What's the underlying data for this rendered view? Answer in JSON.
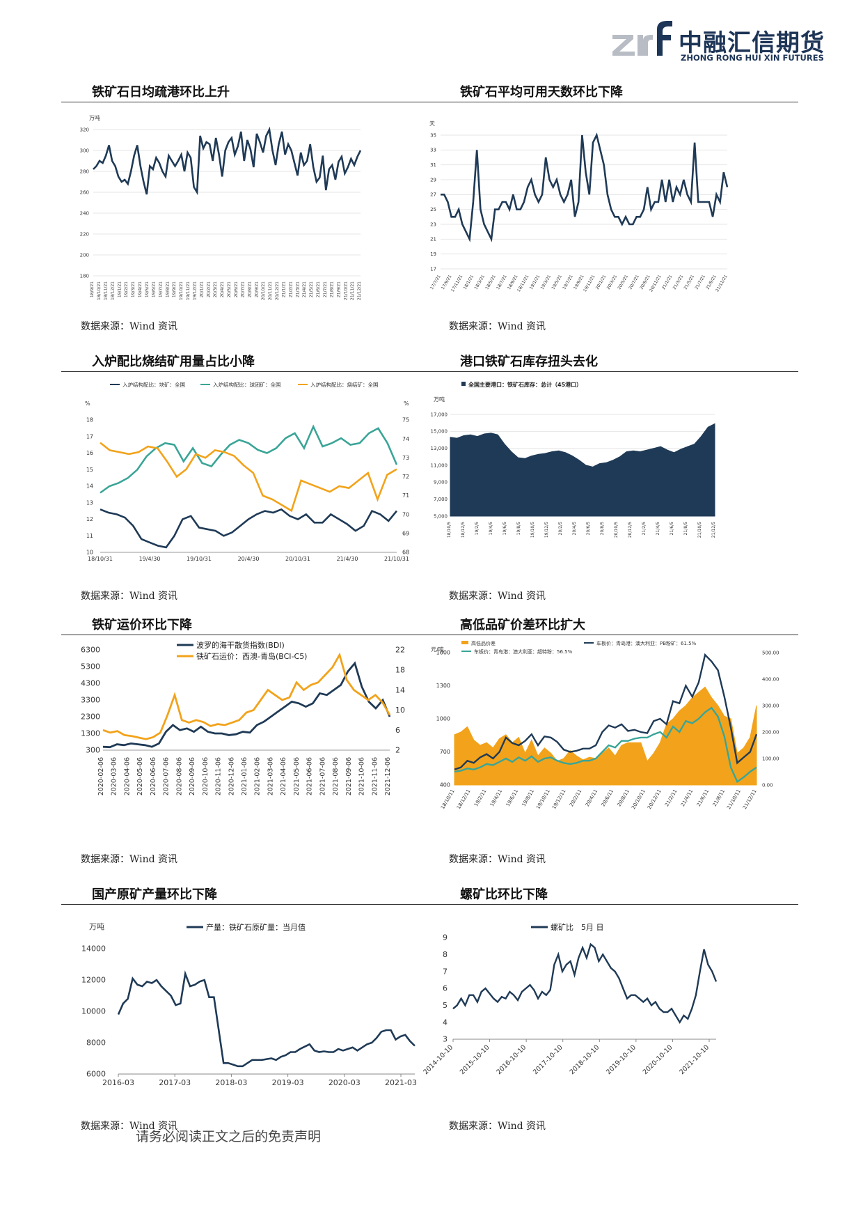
{
  "header": {
    "logo_cn": "中融汇信期货",
    "logo_en": "ZHONG RONG HUI XIN FUTURES"
  },
  "footer": {
    "disclaimer": "请务必阅读正文之后的免责声明"
  },
  "colors": {
    "navy": "#1f3a56",
    "orange": "#f2a31b",
    "teal": "#3aa597",
    "area": "#1f3a56"
  },
  "panels": [
    {
      "title": "铁矿石日均疏港环比上升",
      "source": "数据来源：Wind 资讯"
    },
    {
      "title": "铁矿石平均可用天数环比下降",
      "source": "数据来源：Wind 资讯"
    },
    {
      "title": "入炉配比烧结矿用量占比小降",
      "source": "数据来源：Wind 资讯"
    },
    {
      "title": "港口铁矿石库存扭头去化",
      "source": "数据来源：Wind 资讯"
    },
    {
      "title": "铁矿运价环比下降",
      "source": "数据来源：Wind 资讯"
    },
    {
      "title": "高低品矿价差环比扩大",
      "source": "数据来源：Wind 资讯"
    },
    {
      "title": "国产原矿产量环比下降",
      "source": "数据来源：Wind 资讯"
    },
    {
      "title": "螺矿比环比下降",
      "source": "数据来源：Wind 资讯"
    }
  ],
  "chart_data": [
    {
      "type": "line",
      "ylabel": "万吨",
      "ylim": [
        180,
        320
      ],
      "yticks": [
        "180",
        "200",
        "220",
        "240",
        "260",
        "280",
        "300",
        "320"
      ],
      "xticks": [
        "18/9/21",
        "18/10/21",
        "18/11/21",
        "18/12/21",
        "19/1/21",
        "19/2/21",
        "19/3/21",
        "19/4/21",
        "19/5/21",
        "19/6/21",
        "19/7/21",
        "19/8/21",
        "19/9/21",
        "19/10/21",
        "19/11/21",
        "19/12/21",
        "20/1/21",
        "20/2/21",
        "20/3/21",
        "20/4/21",
        "20/5/21",
        "20/6/21",
        "20/7/21",
        "20/8/21",
        "20/9/21",
        "20/10/21",
        "20/11/21",
        "20/12/21",
        "21/1/21",
        "21/2/21",
        "21/3/21",
        "21/4/21",
        "21/5/21",
        "21/6/21",
        "21/7/21",
        "21/8/21",
        "21/9/21",
        "21/10/21",
        "21/11/21",
        "21/12/21"
      ],
      "series": [
        {
          "values": [
            282,
            285,
            290,
            288,
            295,
            305,
            290,
            285,
            275,
            270,
            272,
            268,
            280,
            295,
            305,
            285,
            270,
            258,
            285,
            282,
            293,
            288,
            280,
            275,
            295,
            290,
            285,
            290,
            296,
            280,
            298,
            293,
            265,
            260,
            314,
            302,
            308,
            306,
            290,
            312,
            296,
            275,
            300,
            308,
            312,
            296,
            304,
            318,
            290,
            310,
            301,
            284,
            316,
            308,
            298,
            314,
            320,
            300,
            286,
            306,
            318,
            296,
            306,
            300,
            288,
            276,
            298,
            286,
            290,
            306,
            284,
            270,
            274,
            295,
            262,
            282,
            286,
            272,
            289,
            294,
            278,
            284,
            292,
            286,
            294,
            300
          ]
        }
      ]
    },
    {
      "type": "line",
      "ylabel": "天",
      "ylim": [
        17,
        35
      ],
      "yticks": [
        "17",
        "19",
        "21",
        "23",
        "25",
        "27",
        "29",
        "31",
        "33",
        "35"
      ],
      "xticks": [
        "17/7/21",
        "17/9/21",
        "17/11/21",
        "18/1/21",
        "18/3/21",
        "18/5/21",
        "18/7/21",
        "18/9/21",
        "18/11/21",
        "19/1/21",
        "19/3/21",
        "19/5/21",
        "19/7/21",
        "19/9/21",
        "19/11/21",
        "20/1/21",
        "20/3/21",
        "20/5/21",
        "20/7/21",
        "20/9/21",
        "20/11/21",
        "21/1/21",
        "21/3/21",
        "21/5/21",
        "21/7/21",
        "21/9/21",
        "21/11/21"
      ],
      "series": [
        {
          "values": [
            27,
            27,
            26,
            24,
            24,
            25,
            23,
            22,
            21,
            26,
            33,
            25,
            23,
            22,
            21,
            25,
            25,
            26,
            26,
            25,
            27,
            25,
            25,
            26,
            28,
            29,
            27,
            26,
            27,
            32,
            29,
            28,
            29,
            27,
            26,
            27,
            29,
            24,
            26,
            35,
            30,
            27,
            34,
            35,
            33,
            31,
            27,
            25,
            24,
            24,
            23,
            24,
            23,
            23,
            24,
            24,
            25,
            28,
            25,
            26,
            26,
            29,
            26,
            29,
            26,
            28,
            27,
            29,
            27,
            26,
            34,
            26,
            26,
            26,
            26,
            24,
            27,
            26,
            30,
            28
          ]
        }
      ]
    },
    {
      "type": "line",
      "xticks": [
        "18/10/31",
        "19/4/30",
        "19/10/31",
        "20/4/30",
        "20/10/31",
        "21/4/30",
        "21/10/31"
      ],
      "yleft_label": "%",
      "yright_label": "%",
      "yleft": [
        10,
        18
      ],
      "yleft_ticks": [
        "10",
        "11",
        "12",
        "13",
        "14",
        "15",
        "16",
        "17",
        "18"
      ],
      "yright": [
        68,
        75
      ],
      "yright_ticks": [
        "68",
        "69",
        "70",
        "71",
        "72",
        "73",
        "74",
        "75"
      ],
      "series": [
        {
          "name": "入炉结构配比：块矿：全国",
          "axis": "left",
          "values": [
            12.6,
            12.4,
            12.3,
            12.1,
            11.6,
            10.8,
            10.6,
            10.4,
            10.3,
            11.0,
            12.0,
            12.2,
            11.5,
            11.4,
            11.3,
            11.0,
            11.2,
            11.6,
            12.0,
            12.3,
            12.5,
            12.4,
            12.6,
            12.2,
            12.0,
            12.3,
            11.8,
            11.8,
            12.3,
            12.0,
            11.7,
            11.3,
            11.6,
            12.5,
            12.3,
            11.9,
            12.5
          ]
        },
        {
          "name": "入炉结构配比：球团矿：全国",
          "axis": "left",
          "values": [
            13.6,
            14.0,
            14.2,
            14.5,
            15.0,
            15.8,
            16.3,
            16.6,
            16.5,
            15.5,
            16.3,
            15.4,
            15.2,
            15.9,
            16.5,
            16.8,
            16.6,
            16.2,
            16.0,
            16.3,
            16.9,
            17.2,
            16.3,
            17.6,
            16.4,
            16.6,
            16.9,
            16.5,
            16.6,
            17.2,
            17.5,
            16.6,
            15.3
          ]
        },
        {
          "name": "入炉结构配比：烧结矿：全国",
          "axis": "right",
          "values": [
            73.8,
            73.4,
            73.3,
            73.2,
            73.3,
            73.6,
            73.5,
            72.8,
            72.0,
            72.4,
            73.2,
            73.0,
            73.4,
            73.3,
            73.1,
            72.6,
            72.2,
            71.0,
            70.8,
            70.5,
            70.2,
            71.8,
            71.6,
            71.4,
            71.2,
            71.5,
            71.4,
            71.8,
            72.2,
            70.8,
            72.1,
            72.4
          ]
        }
      ]
    },
    {
      "type": "area",
      "title": "全国主要港口：铁矿石库存：总计（45港口）",
      "ylabel": "万吨",
      "ylim": [
        5000,
        17000
      ],
      "yticks": [
        "5,000",
        "7,000",
        "9,000",
        "11,000",
        "13,000",
        "15,000",
        "17,000"
      ],
      "xticks": [
        "18/10/5",
        "18/12/5",
        "19/2/5",
        "19/4/5",
        "19/6/5",
        "19/8/5",
        "19/10/5",
        "19/12/5",
        "20/2/5",
        "20/4/5",
        "20/6/5",
        "20/8/5",
        "20/10/5",
        "20/12/5",
        "21/2/5",
        "21/4/5",
        "21/6/5",
        "21/8/5",
        "21/10/5",
        "21/12/5"
      ],
      "series": [
        {
          "values": [
            14300,
            14200,
            14500,
            14600,
            14400,
            14700,
            14800,
            14600,
            13500,
            12600,
            11900,
            11800,
            12100,
            12300,
            12400,
            12600,
            12700,
            12500,
            12100,
            11600,
            11000,
            10800,
            11200,
            11300,
            11600,
            12000,
            12600,
            12700,
            12600,
            12800,
            13000,
            13200,
            12800,
            12500,
            12900,
            13200,
            13500,
            14400,
            15500,
            15900
          ]
        }
      ]
    },
    {
      "type": "line",
      "xticks": [
        "2020-02-06",
        "2020-03-06",
        "2020-04-06",
        "2020-05-06",
        "2020-06-06",
        "2020-07-06",
        "2020-08-06",
        "2020-09-06",
        "2020-10-06",
        "2020-11-06",
        "2020-12-06",
        "2021-01-06",
        "2021-02-06",
        "2021-03-06",
        "2021-04-06",
        "2021-05-06",
        "2021-06-06",
        "2021-07-06",
        "2021-08-06",
        "2021-09-06",
        "2021-10-06",
        "2021-11-06",
        "2021-12-06"
      ],
      "yleft": [
        300,
        6300
      ],
      "yleft_ticks": [
        "300",
        "1300",
        "2300",
        "3300",
        "4300",
        "5300",
        "6300"
      ],
      "yright": [
        2,
        22
      ],
      "yright_ticks": [
        "2",
        "6",
        "10",
        "14",
        "18",
        "22"
      ],
      "series": [
        {
          "name": "波罗的海干散货指数(BDI)",
          "axis": "left",
          "values": [
            500,
            480,
            650,
            600,
            700,
            650,
            600,
            500,
            700,
            1400,
            1800,
            1500,
            1600,
            1400,
            1700,
            1400,
            1300,
            1300,
            1200,
            1250,
            1400,
            1350,
            1800,
            2000,
            2300,
            2600,
            2900,
            3200,
            3100,
            2900,
            3100,
            3700,
            3600,
            3900,
            4200,
            5000,
            5500,
            4100,
            3200,
            2800,
            3300,
            2300
          ]
        },
        {
          "name": "铁矿石运价：西澳-青岛(BCI-C5)",
          "axis": "right",
          "values": [
            6,
            5.5,
            5.8,
            5,
            4.8,
            4.5,
            4.2,
            4.6,
            5.5,
            9,
            13,
            8,
            7.5,
            8,
            7.6,
            6.8,
            7.2,
            7,
            7.5,
            8,
            9.5,
            10,
            12,
            14,
            13,
            12,
            12.5,
            15.5,
            14,
            15,
            15.5,
            17,
            18.5,
            21,
            16,
            14,
            13,
            12,
            13,
            11.5,
            9
          ]
        }
      ]
    },
    {
      "type": "area",
      "xticks": [
        "18/10/11",
        "18/12/11",
        "19/2/11",
        "19/4/11",
        "19/6/11",
        "19/8/11",
        "19/10/11",
        "19/12/11",
        "20/2/11",
        "20/4/11",
        "20/6/11",
        "20/8/11",
        "20/10/11",
        "20/12/11",
        "21/2/11",
        "21/4/11",
        "21/6/11",
        "21/8/11",
        "21/10/11",
        "21/12/11"
      ],
      "ylabel": "元/吨",
      "yleft": [
        400,
        1600
      ],
      "yleft_ticks": [
        "400",
        "700",
        "1000",
        "1300",
        "1600"
      ],
      "yright": [
        0,
        500
      ],
      "yright_ticks": [
        "0.00",
        "100.00",
        "200.00",
        "300.00",
        "400.00",
        "500.00"
      ],
      "series": [
        {
          "name": "高低品价差",
          "axis": "right",
          "kind": "area",
          "values": [
            190,
            200,
            220,
            170,
            150,
            160,
            140,
            175,
            190,
            160,
            180,
            120,
            170,
            110,
            140,
            120,
            90,
            100,
            130,
            110,
            95,
            105,
            100,
            120,
            140,
            110,
            150,
            160,
            160,
            160,
            90,
            120,
            160,
            230,
            250,
            280,
            300,
            330,
            350,
            370,
            330,
            300,
            260,
            250,
            120,
            140,
            180,
            300
          ]
        },
        {
          "name": "车板价：青岛港：澳大利亚：PB粉矿：61.5%",
          "axis": "left",
          "values": [
            540,
            560,
            620,
            600,
            650,
            680,
            640,
            700,
            830,
            780,
            760,
            800,
            860,
            760,
            840,
            830,
            790,
            720,
            700,
            710,
            730,
            730,
            760,
            880,
            940,
            920,
            950,
            890,
            900,
            880,
            870,
            980,
            1000,
            950,
            1160,
            1140,
            1300,
            1200,
            1330,
            1580,
            1520,
            1440,
            1200,
            920,
            600,
            650,
            700,
            860
          ]
        },
        {
          "name": "车板价：青岛港：澳大利亚：超特粉：56.5%",
          "axis": "left",
          "values": [
            520,
            530,
            550,
            540,
            560,
            590,
            580,
            610,
            640,
            610,
            650,
            620,
            660,
            610,
            640,
            650,
            620,
            600,
            590,
            600,
            620,
            620,
            640,
            700,
            760,
            740,
            800,
            800,
            820,
            830,
            830,
            860,
            880,
            830,
            930,
            880,
            980,
            960,
            1000,
            1060,
            1100,
            1020,
            840,
            560,
            430,
            470,
            520,
            560
          ]
        }
      ]
    },
    {
      "type": "line",
      "ylabel": "万吨",
      "ylim": [
        6000,
        14000
      ],
      "yticks": [
        "6000",
        "8000",
        "10000",
        "12000",
        "14000"
      ],
      "xticks": [
        "2016-03",
        "2017-03",
        "2018-03",
        "2019-03",
        "2020-03",
        "2021-03"
      ],
      "series": [
        {
          "name": "产量：铁矿石原矿量：当月值",
          "values": [
            9800,
            10500,
            10800,
            12100,
            11700,
            11600,
            11900,
            11800,
            12000,
            11600,
            11300,
            11000,
            10400,
            10500,
            12400,
            11600,
            11700,
            11900,
            12000,
            10900,
            10900,
            8800,
            6700,
            6700,
            6600,
            6500,
            6500,
            6700,
            6900,
            6900,
            6900,
            6950,
            7000,
            6900,
            7100,
            7200,
            7400,
            7400,
            7600,
            7750,
            7900,
            7500,
            7400,
            7450,
            7400,
            7400,
            7600,
            7500,
            7600,
            7700,
            7500,
            7700,
            7900,
            8000,
            8300,
            8700,
            8800,
            8800,
            8200,
            8400,
            8500,
            8100,
            7800
          ]
        }
      ]
    },
    {
      "type": "line",
      "ylim": [
        3,
        9
      ],
      "yticks": [
        "3",
        "4",
        "5",
        "6",
        "7",
        "8",
        "9"
      ],
      "xticks": [
        "2014-10-10",
        "2015-10-10",
        "2016-10-10",
        "2017-10-10",
        "2018-10-10",
        "2019-10-10",
        "2020-10-10",
        "2021-10-10"
      ],
      "series": [
        {
          "name": "螺矿比　5月 日",
          "values": [
            4.8,
            5.0,
            5.4,
            5.0,
            5.6,
            5.6,
            5.2,
            5.8,
            6.0,
            5.7,
            5.4,
            5.2,
            5.5,
            5.4,
            5.8,
            5.6,
            5.3,
            5.8,
            6.0,
            6.2,
            5.9,
            5.4,
            5.8,
            5.6,
            5.9,
            7.4,
            8.0,
            7.0,
            7.4,
            7.6,
            6.8,
            7.8,
            8.4,
            7.8,
            8.6,
            8.4,
            7.6,
            8.0,
            7.6,
            7.2,
            7.0,
            6.6,
            6.0,
            5.4,
            5.6,
            5.6,
            5.4,
            5.2,
            5.4,
            5.0,
            5.2,
            4.8,
            4.6,
            4.6,
            4.8,
            4.4,
            4.0,
            4.4,
            4.2,
            4.8,
            5.6,
            7.0,
            8.3,
            7.4,
            7.0,
            6.4
          ]
        }
      ]
    }
  ]
}
